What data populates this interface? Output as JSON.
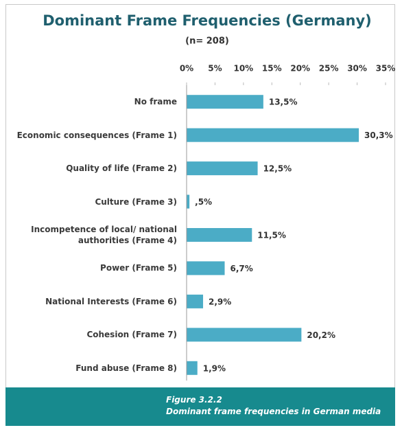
{
  "chart_data": {
    "type": "bar",
    "orientation": "horizontal",
    "title": "Dominant Frame Frequencies (Germany)",
    "subtitle": "(n= 208)",
    "categories": [
      "No frame",
      "Economic consequences (Frame 1)",
      "Quality of life (Frame 2)",
      "Culture (Frame 3)",
      "Incompetence of local/ national authorities (Frame 4)",
      "Power (Frame 5)",
      "National Interests (Frame 6)",
      "Cohesion (Frame 7)",
      "Fund abuse (Frame 8)"
    ],
    "values": [
      13.5,
      30.3,
      12.5,
      0.5,
      11.5,
      6.7,
      2.9,
      20.2,
      1.9
    ],
    "value_labels": [
      "13,5%",
      "30,3%",
      "12,5%",
      ",5%",
      "11,5%",
      "6,7%",
      "2,9%",
      "20,2%",
      "1,9%"
    ],
    "color": "#4bacc6",
    "xlim": [
      0,
      35
    ],
    "xticks": [
      {
        "value": 0,
        "label": "0%"
      },
      {
        "value": 5,
        "label": "5%"
      },
      {
        "value": 10,
        "label": "10%"
      },
      {
        "value": 15,
        "label": "15%"
      },
      {
        "value": 20,
        "label": "20%"
      },
      {
        "value": 25,
        "label": "25%"
      },
      {
        "value": 30,
        "label": "30%"
      },
      {
        "value": 35,
        "label": "35%"
      }
    ],
    "grid": false
  },
  "caption": {
    "figure": "Figure 3.2.2",
    "text": "Dominant frame frequencies in German media"
  }
}
